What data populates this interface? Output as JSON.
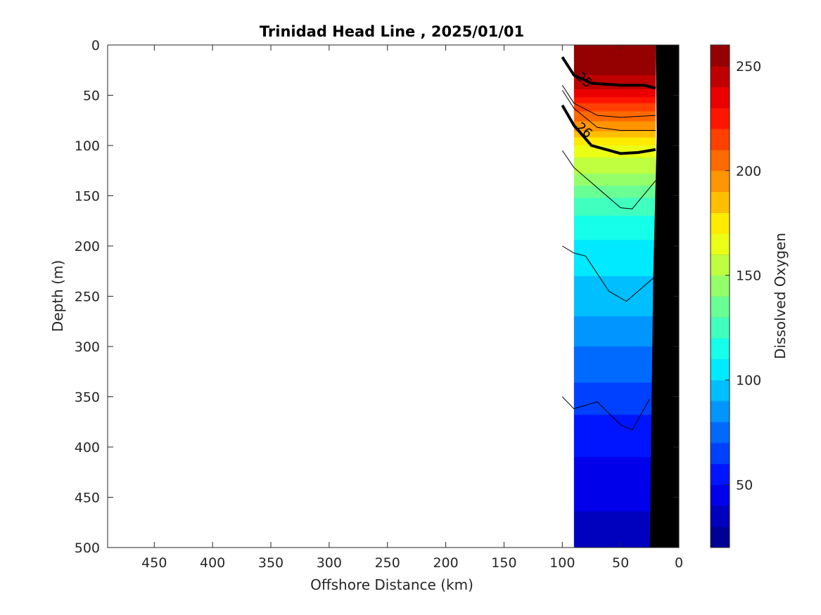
{
  "chart_data": {
    "type": "heatmap",
    "title": "Trinidad Head Line , 2025/01/01",
    "xlabel": "Offshore Distance (km)",
    "ylabel": "Depth (m)",
    "xlim": [
      490,
      0
    ],
    "ylim": [
      500,
      0
    ],
    "x_reversed": true,
    "y_reversed": true,
    "xticks": [
      450,
      400,
      350,
      300,
      250,
      200,
      150,
      100,
      50,
      0
    ],
    "yticks": [
      0,
      50,
      100,
      150,
      200,
      250,
      300,
      350,
      400,
      450,
      500
    ],
    "colorbar": {
      "label": "Dissolved Oxygen",
      "range": [
        20,
        260
      ],
      "ticks": [
        50,
        100,
        150,
        200,
        250
      ],
      "step": 10,
      "colormap": "jet"
    },
    "data_extent_km": [
      90,
      20
    ],
    "oxygen_profile": {
      "depth": [
        0,
        25,
        40,
        55,
        70,
        85,
        100,
        115,
        130,
        145,
        160,
        180,
        200,
        220,
        240,
        270,
        300,
        330,
        360,
        400,
        450,
        500
      ],
      "values": [
        255,
        252,
        245,
        225,
        205,
        190,
        170,
        158,
        148,
        135,
        125,
        115,
        108,
        102,
        98,
        90,
        80,
        72,
        62,
        52,
        42,
        35
      ]
    },
    "density_contours": [
      {
        "label": "25",
        "depth_at_km": [
          [
            100,
            12
          ],
          [
            90,
            30
          ],
          [
            75,
            38
          ],
          [
            50,
            40
          ],
          [
            30,
            40
          ],
          [
            20,
            43
          ]
        ],
        "bold": true
      },
      {
        "label": "26",
        "depth_at_km": [
          [
            100,
            60
          ],
          [
            90,
            80
          ],
          [
            75,
            100
          ],
          [
            50,
            108
          ],
          [
            35,
            107
          ],
          [
            20,
            104
          ]
        ],
        "bold": true
      },
      {
        "label": "",
        "depth_at_km": [
          [
            100,
            40
          ],
          [
            90,
            58
          ],
          [
            70,
            70
          ],
          [
            50,
            72
          ],
          [
            20,
            70
          ]
        ],
        "bold": false
      },
      {
        "label": "",
        "depth_at_km": [
          [
            100,
            45
          ],
          [
            90,
            63
          ],
          [
            70,
            82
          ],
          [
            50,
            85
          ],
          [
            20,
            85
          ]
        ],
        "bold": false
      },
      {
        "label": "",
        "depth_at_km": [
          [
            100,
            105
          ],
          [
            90,
            122
          ],
          [
            70,
            142
          ],
          [
            50,
            162
          ],
          [
            40,
            163
          ],
          [
            20,
            135
          ]
        ],
        "bold": false
      },
      {
        "label": "",
        "depth_at_km": [
          [
            100,
            200
          ],
          [
            90,
            207
          ],
          [
            80,
            210
          ],
          [
            60,
            245
          ],
          [
            45,
            255
          ],
          [
            20,
            230
          ]
        ],
        "bold": false
      },
      {
        "label": "",
        "depth_at_km": [
          [
            100,
            350
          ],
          [
            90,
            362
          ],
          [
            70,
            355
          ],
          [
            50,
            378
          ],
          [
            40,
            383
          ],
          [
            25,
            352
          ]
        ],
        "bold": false
      }
    ],
    "bathymetry_km_at_depth": [
      [
        20,
        0
      ],
      [
        19,
        90
      ],
      [
        22,
        230
      ],
      [
        25,
        500
      ]
    ]
  }
}
